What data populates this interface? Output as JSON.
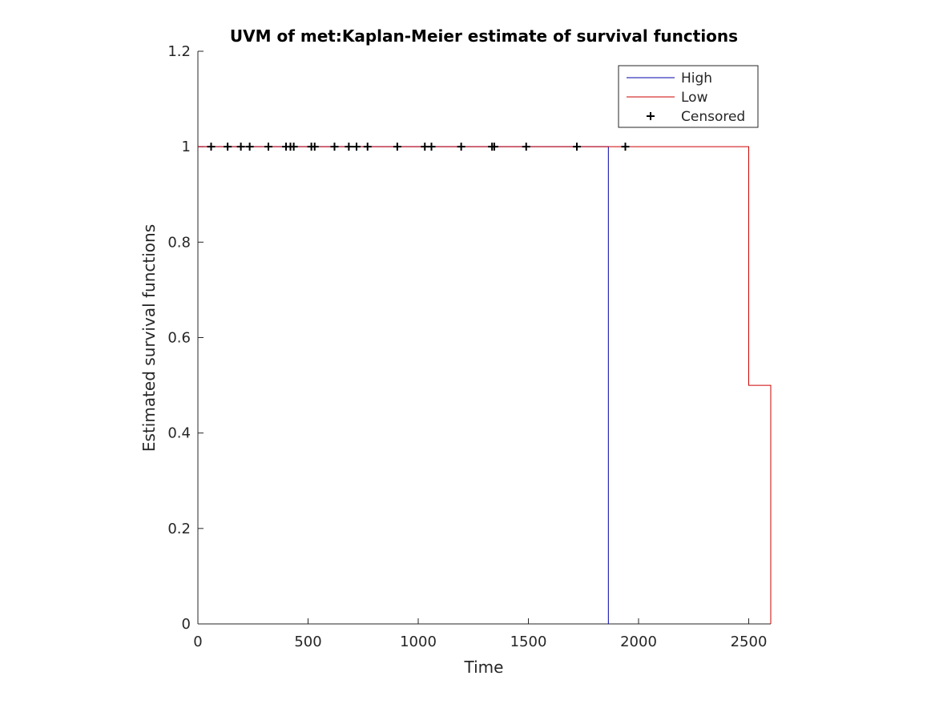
{
  "chart_data": {
    "type": "line",
    "title": "UVM of met:Kaplan-Meier estimate of survival functions",
    "xlabel": "Time",
    "ylabel": "Estimated survival functions",
    "xlim": [
      0,
      2600
    ],
    "ylim": [
      0,
      1.2
    ],
    "xticks": [
      0,
      500,
      1000,
      1500,
      2000,
      2500
    ],
    "yticks": [
      0,
      0.2,
      0.4,
      0.6,
      0.8,
      1,
      1.2
    ],
    "xtick_labels": [
      "0",
      "500",
      "1000",
      "1500",
      "2000",
      "2500"
    ],
    "ytick_labels": [
      "0",
      "0.2",
      "0.4",
      "0.6",
      "0.8",
      "1",
      "1.2"
    ],
    "grid": false,
    "legend_position": "top-right",
    "series": [
      {
        "name": "High",
        "color": "#0000aa",
        "step": true,
        "x": [
          0,
          1863,
          1863
        ],
        "y": [
          1,
          1,
          0
        ]
      },
      {
        "name": "Low",
        "color": "#cc0000",
        "step": true,
        "x": [
          0,
          2500,
          2500,
          2600,
          2600
        ],
        "y": [
          1,
          1,
          0.5,
          0.5,
          0
        ]
      }
    ],
    "censored": {
      "name": "Censored",
      "color": "#000000",
      "marker": "+",
      "x": [
        60,
        135,
        195,
        235,
        320,
        400,
        420,
        435,
        515,
        530,
        620,
        685,
        720,
        770,
        905,
        1030,
        1060,
        1195,
        1335,
        1345,
        1490,
        1720,
        1940
      ],
      "y": [
        1,
        1,
        1,
        1,
        1,
        1,
        1,
        1,
        1,
        1,
        1,
        1,
        1,
        1,
        1,
        1,
        1,
        1,
        1,
        1,
        1,
        1,
        1
      ]
    }
  }
}
